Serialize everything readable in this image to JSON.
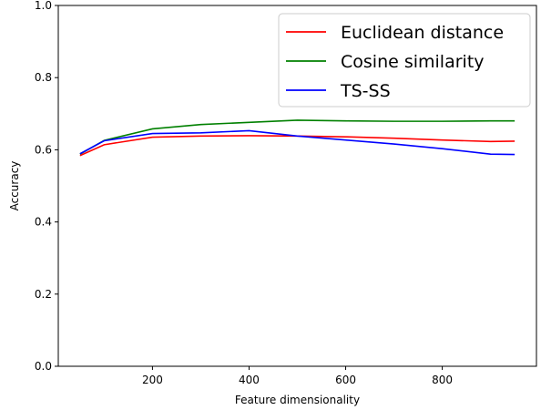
{
  "chart_data": {
    "type": "line",
    "xlabel": "Feature dimensionality",
    "ylabel": "Accuracy",
    "xlim": [
      5,
      995
    ],
    "ylim": [
      0.0,
      1.0
    ],
    "xticks": [
      200,
      400,
      600,
      800
    ],
    "yticks": [
      0.0,
      0.2,
      0.4,
      0.6,
      0.8,
      1.0
    ],
    "grid": false,
    "legend_position": "upper right",
    "series": [
      {
        "name": "Euclidean distance",
        "color": "#ff0000",
        "x": [
          50,
          100,
          200,
          300,
          400,
          500,
          600,
          700,
          800,
          900,
          950
        ],
        "y": [
          0.584,
          0.614,
          0.635,
          0.638,
          0.639,
          0.638,
          0.636,
          0.632,
          0.627,
          0.623,
          0.624
        ]
      },
      {
        "name": "Cosine similarity",
        "color": "#008000",
        "x": [
          50,
          100,
          200,
          300,
          400,
          500,
          600,
          700,
          800,
          900,
          950
        ],
        "y": [
          0.588,
          0.626,
          0.658,
          0.67,
          0.676,
          0.682,
          0.68,
          0.679,
          0.679,
          0.68,
          0.68
        ]
      },
      {
        "name": "TS-SS",
        "color": "#0000ff",
        "x": [
          50,
          100,
          200,
          300,
          400,
          500,
          600,
          700,
          800,
          900,
          950
        ],
        "y": [
          0.589,
          0.625,
          0.645,
          0.647,
          0.653,
          0.638,
          0.627,
          0.616,
          0.603,
          0.588,
          0.587
        ]
      }
    ]
  }
}
